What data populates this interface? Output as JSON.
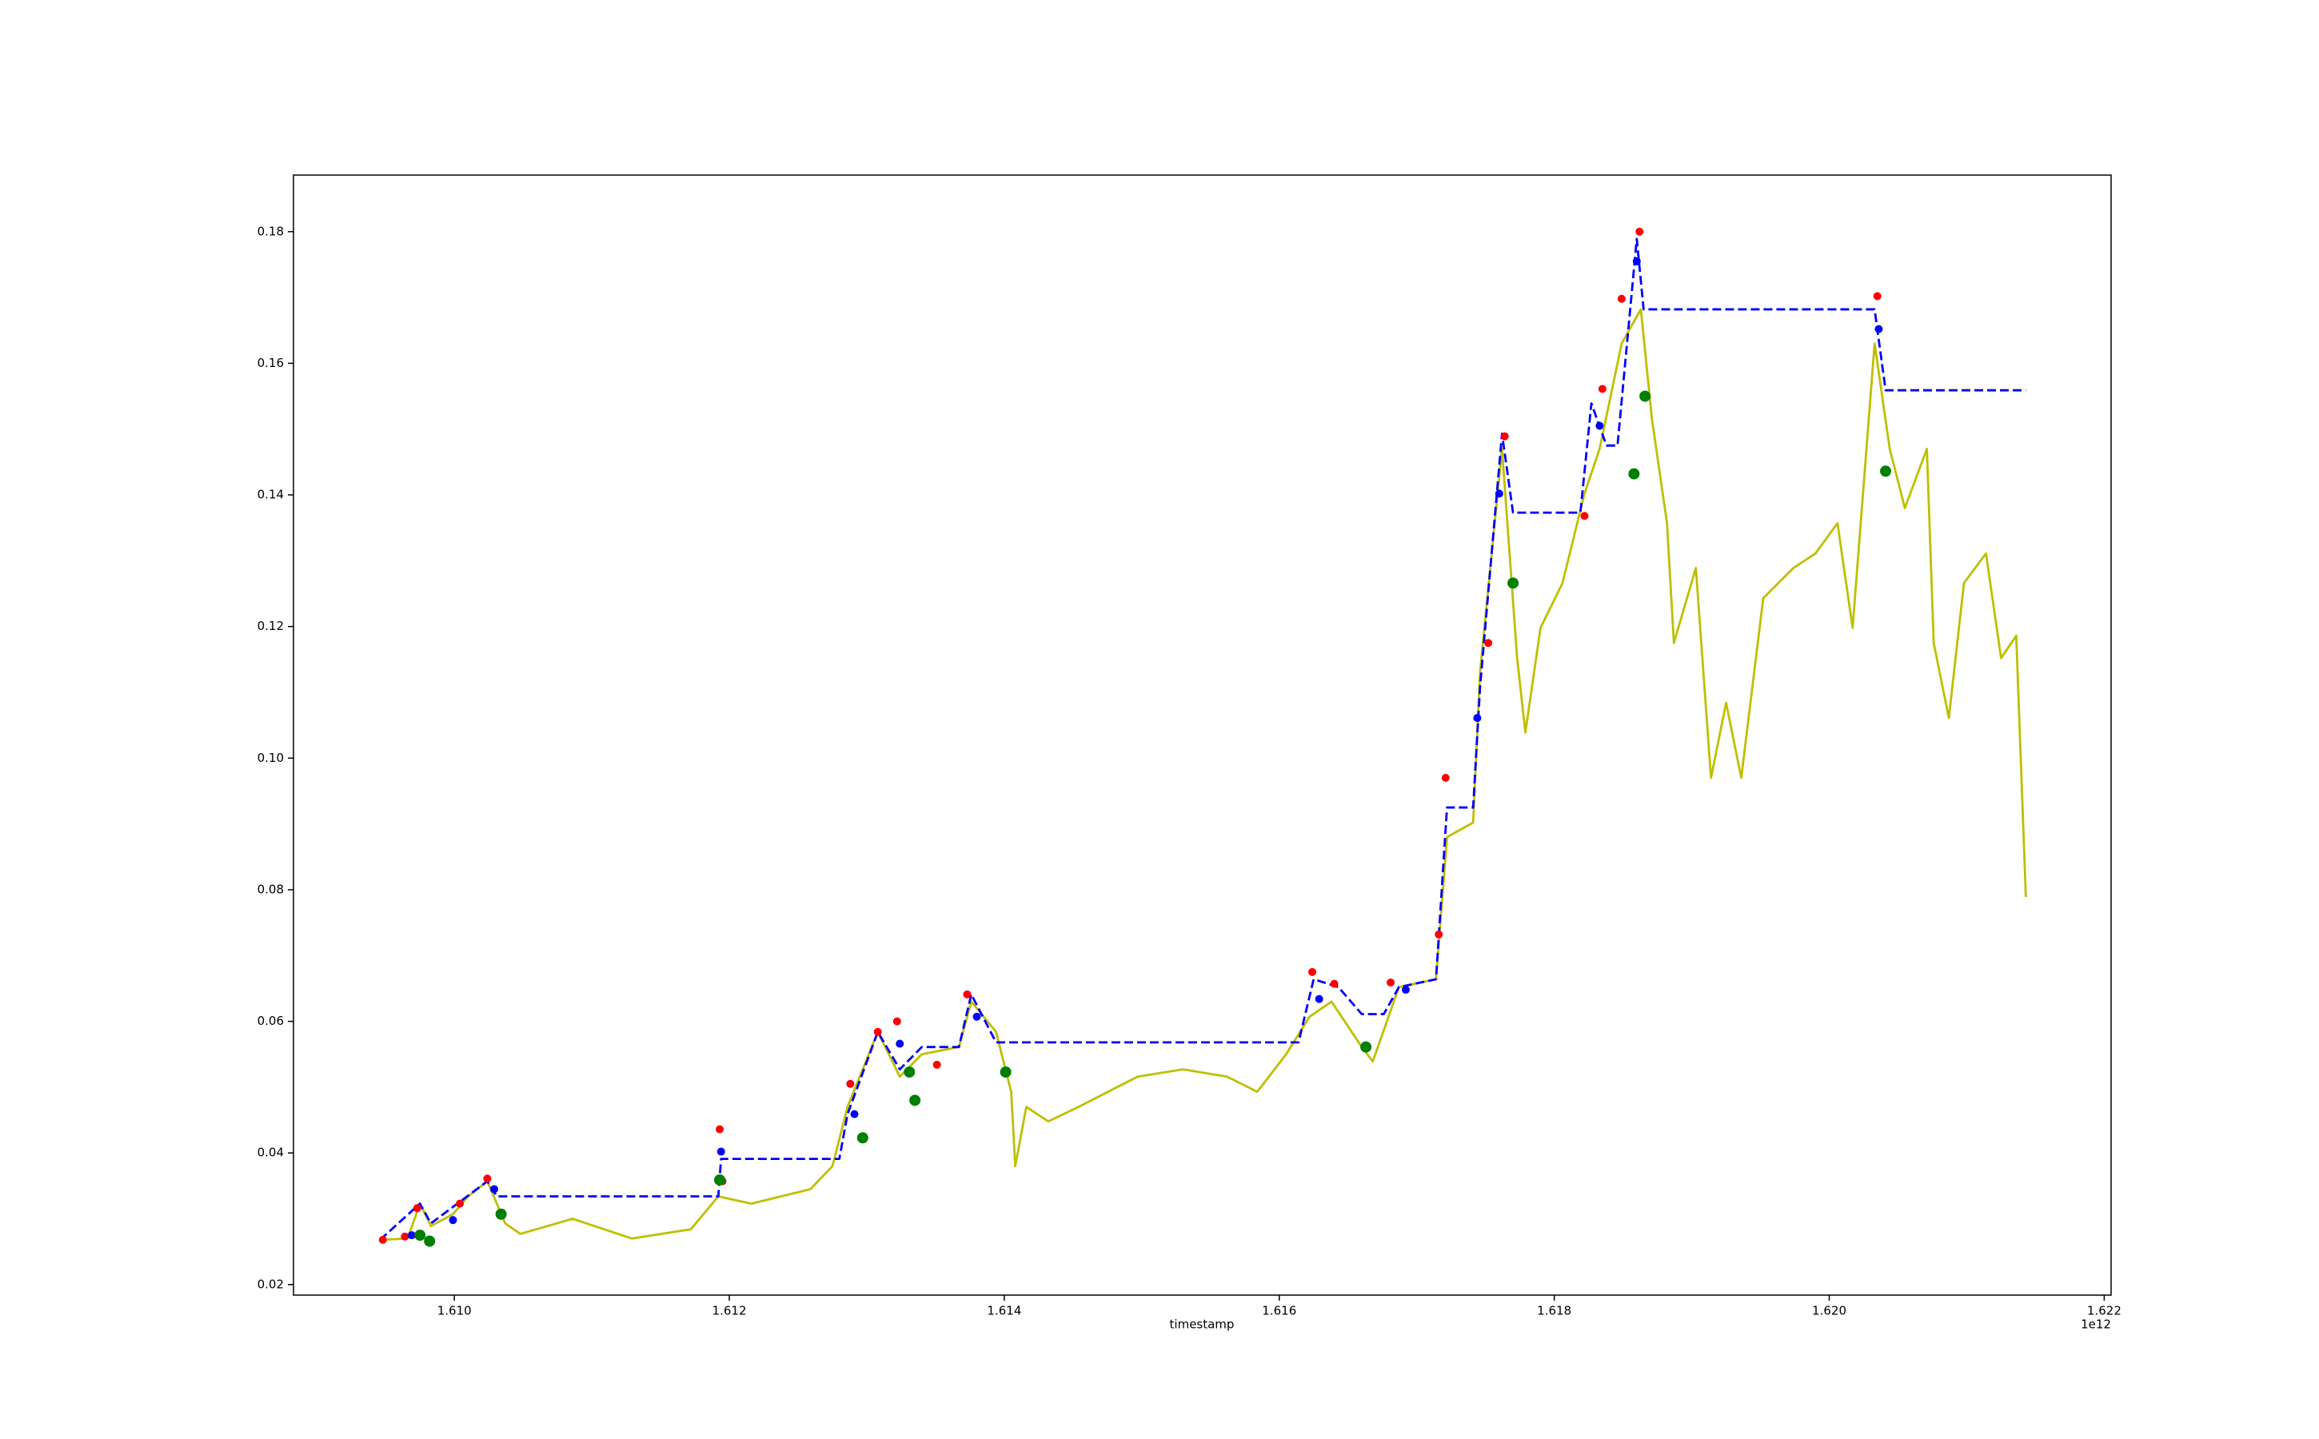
{
  "chart_data": {
    "type": "line",
    "x_label": "timestamp",
    "x_offset_label": "1e12",
    "xlim": [
      1.60883,
      1.62205
    ],
    "xticks": [
      {
        "value": 1.61,
        "label": "1.610"
      },
      {
        "value": 1.612,
        "label": "1.612"
      },
      {
        "value": 1.614,
        "label": "1.614"
      },
      {
        "value": 1.616,
        "label": "1.616"
      },
      {
        "value": 1.618,
        "label": "1.618"
      },
      {
        "value": 1.62,
        "label": "1.620"
      },
      {
        "value": 1.622,
        "label": "1.622"
      }
    ],
    "ylim": [
      0.0184,
      0.1886
    ],
    "yticks": [
      0.02,
      0.04,
      0.06,
      0.08,
      {
        "value": 0.1,
        "label": "0.10"
      },
      0.12,
      0.14,
      0.16,
      0.18
    ],
    "grid": false,
    "series": [
      {
        "kind": "line",
        "style": "solid",
        "color": "#bfbf00",
        "x": [
          1.60946,
          1.60966,
          1.60975,
          1.60983,
          1.60999,
          1.6101,
          1.61024,
          1.61037,
          1.61048,
          1.61086,
          1.61129,
          1.61172,
          1.61192,
          1.61216,
          1.61259,
          1.61275,
          1.61286,
          1.61308,
          1.61324,
          1.6134,
          1.61367,
          1.61376,
          1.61394,
          1.61405,
          1.61408,
          1.61416,
          1.61432,
          1.61454,
          1.61497,
          1.6153,
          1.61562,
          1.61584,
          1.61605,
          1.61622,
          1.61638,
          1.6166,
          1.61668,
          1.61687,
          1.61714,
          1.61722,
          1.61741,
          1.61746,
          1.61762,
          1.61773,
          1.61779,
          1.6179,
          1.61806,
          1.61822,
          1.61833,
          1.61849,
          1.61863,
          1.61871,
          1.61882,
          1.61887,
          1.61903,
          1.61914,
          1.61925,
          1.61936,
          1.61952,
          1.61974,
          1.6199,
          1.62006,
          1.62017,
          1.62033,
          1.62044,
          1.62055,
          1.62071,
          1.62076,
          1.62087,
          1.62098,
          1.62114,
          1.62125,
          1.62136,
          1.62143
        ],
        "values": [
          0.0268,
          0.027,
          0.0323,
          0.0289,
          0.0307,
          0.0334,
          0.0357,
          0.0293,
          0.0277,
          0.03,
          0.027,
          0.0284,
          0.0334,
          0.0323,
          0.0345,
          0.038,
          0.047,
          0.0584,
          0.0516,
          0.055,
          0.0561,
          0.063,
          0.0584,
          0.0493,
          0.038,
          0.047,
          0.0448,
          0.047,
          0.0516,
          0.0527,
          0.0516,
          0.0493,
          0.055,
          0.0607,
          0.063,
          0.0561,
          0.0539,
          0.0652,
          0.0664,
          0.088,
          0.0902,
          0.113,
          0.147,
          0.1152,
          0.1039,
          0.1198,
          0.1266,
          0.1402,
          0.147,
          0.163,
          0.1682,
          0.1516,
          0.1357,
          0.1175,
          0.1289,
          0.097,
          0.1084,
          0.097,
          0.1243,
          0.1289,
          0.1311,
          0.1357,
          0.1198,
          0.163,
          0.147,
          0.138,
          0.147,
          0.1175,
          0.1061,
          0.1266,
          0.1311,
          0.1152,
          0.1186,
          0.0789
        ]
      },
      {
        "kind": "line",
        "style": "dashed",
        "color": "#0000ff",
        "x": [
          1.60946,
          1.60975,
          1.60983,
          1.61024,
          1.61031,
          1.61192,
          1.61194,
          1.6128,
          1.61286,
          1.61308,
          1.61324,
          1.6134,
          1.61367,
          1.61376,
          1.61394,
          1.61614,
          1.61625,
          1.61643,
          1.6166,
          1.61676,
          1.61687,
          1.61714,
          1.61722,
          1.61741,
          1.61746,
          1.61762,
          1.6177,
          1.61819,
          1.61827,
          1.61838,
          1.61846,
          1.6186,
          1.61865,
          1.62033,
          1.62041,
          1.62143
        ],
        "values": [
          0.0268,
          0.0323,
          0.0293,
          0.0357,
          0.0334,
          0.0334,
          0.0391,
          0.0391,
          0.0459,
          0.0584,
          0.0527,
          0.0561,
          0.0561,
          0.0641,
          0.0568,
          0.0568,
          0.0664,
          0.0652,
          0.0611,
          0.0611,
          0.0652,
          0.0664,
          0.0925,
          0.0925,
          0.1107,
          0.1493,
          0.1373,
          0.1373,
          0.1539,
          0.1475,
          0.1475,
          0.1789,
          0.1682,
          0.1682,
          0.1559,
          0.1559
        ]
      },
      {
        "kind": "scatter",
        "color": "#ff0000",
        "size": 5,
        "x": [
          1.60948,
          1.60964,
          1.60973,
          1.61004,
          1.61024,
          1.61193,
          1.61195,
          1.61288,
          1.61308,
          1.61322,
          1.61351,
          1.61373,
          1.61624,
          1.6164,
          1.61681,
          1.61716,
          1.61721,
          1.61752,
          1.61764,
          1.61822,
          1.61835,
          1.61849,
          1.61862,
          1.62035
        ],
        "values": [
          0.0268,
          0.0273,
          0.0316,
          0.0323,
          0.0361,
          0.0436,
          0.0357,
          0.0505,
          0.0584,
          0.06,
          0.0534,
          0.0641,
          0.0675,
          0.0657,
          0.0659,
          0.0732,
          0.097,
          0.1175,
          0.1489,
          0.1368,
          0.1561,
          0.1698,
          0.18,
          0.1702
        ]
      },
      {
        "kind": "scatter",
        "color": "#0000ff",
        "size": 5,
        "x": [
          1.60969,
          1.60999,
          1.61029,
          1.61194,
          1.61291,
          1.61324,
          1.6138,
          1.61629,
          1.61692,
          1.61744,
          1.6176,
          1.61833,
          1.6186,
          1.62036
        ],
        "values": [
          0.0275,
          0.0298,
          0.0345,
          0.0402,
          0.0459,
          0.0566,
          0.0607,
          0.0634,
          0.0648,
          0.1061,
          0.1402,
          0.1505,
          0.1755,
          0.1652
        ]
      },
      {
        "kind": "scatter",
        "color": "#008000",
        "size": 7,
        "x": [
          1.60975,
          1.60982,
          1.61034,
          1.61193,
          1.61297,
          1.61331,
          1.61335,
          1.61401,
          1.61663,
          1.6177,
          1.61858,
          1.61866,
          1.62041
        ],
        "values": [
          0.0275,
          0.0266,
          0.0307,
          0.0359,
          0.0423,
          0.0523,
          0.048,
          0.0523,
          0.0561,
          0.1266,
          0.1432,
          0.155,
          0.1436
        ]
      }
    ]
  }
}
